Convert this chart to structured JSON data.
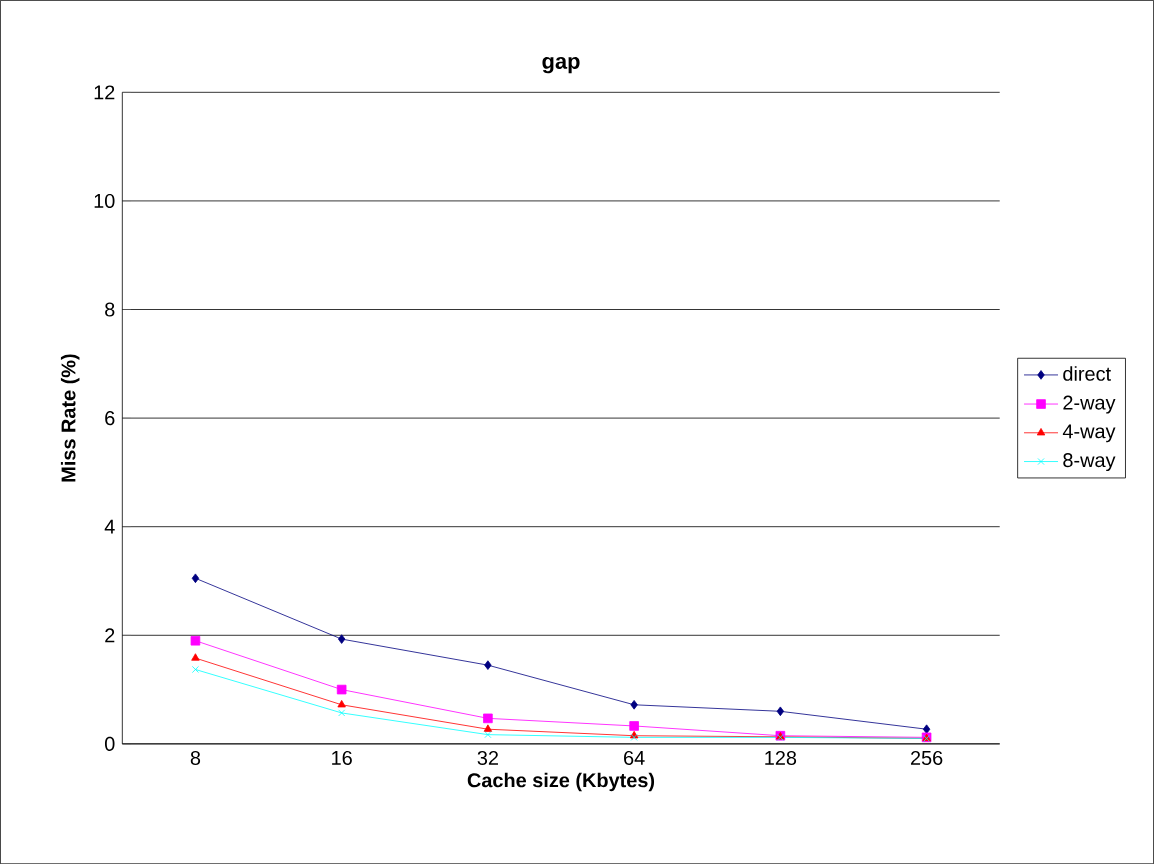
{
  "chart_data": {
    "type": "line",
    "title": "gap",
    "xlabel": "Cache size (Kbytes)",
    "ylabel": "Miss Rate (%)",
    "categories": [
      "8",
      "16",
      "32",
      "64",
      "128",
      "256"
    ],
    "ylim": [
      0,
      12
    ],
    "yticks": [
      0,
      2,
      4,
      6,
      8,
      10,
      12
    ],
    "grid": "y",
    "legend": "right",
    "series": [
      {
        "name": "direct",
        "color": "#000080",
        "marker": "diamond",
        "values": [
          3.05,
          1.93,
          1.45,
          0.72,
          0.6,
          0.27
        ]
      },
      {
        "name": "2-way",
        "color": "#ff00ff",
        "marker": "square",
        "values": [
          1.9,
          1.0,
          0.47,
          0.33,
          0.15,
          0.12
        ]
      },
      {
        "name": "4-way",
        "color": "#ff0000",
        "marker": "triangle",
        "values": [
          1.58,
          0.72,
          0.27,
          0.15,
          0.13,
          0.1
        ]
      },
      {
        "name": "8-way",
        "color": "#00ffff",
        "marker": "cross",
        "values": [
          1.37,
          0.57,
          0.17,
          0.12,
          0.12,
          0.1
        ]
      }
    ]
  }
}
